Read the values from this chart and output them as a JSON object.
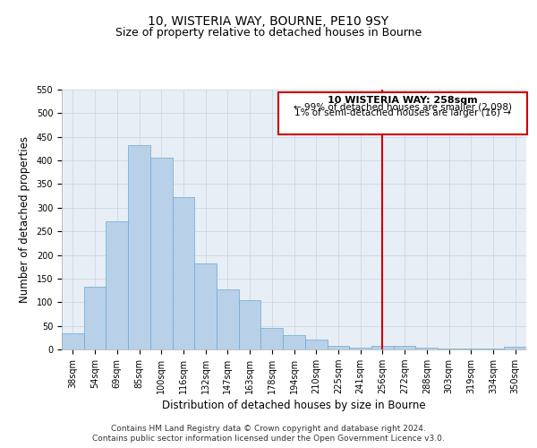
{
  "title": "10, WISTERIA WAY, BOURNE, PE10 9SY",
  "subtitle": "Size of property relative to detached houses in Bourne",
  "xlabel": "Distribution of detached houses by size in Bourne",
  "ylabel": "Number of detached properties",
  "bar_labels": [
    "38sqm",
    "54sqm",
    "69sqm",
    "85sqm",
    "100sqm",
    "116sqm",
    "132sqm",
    "147sqm",
    "163sqm",
    "178sqm",
    "194sqm",
    "210sqm",
    "225sqm",
    "241sqm",
    "256sqm",
    "272sqm",
    "288sqm",
    "303sqm",
    "319sqm",
    "334sqm",
    "350sqm"
  ],
  "bar_heights": [
    35,
    133,
    272,
    433,
    405,
    323,
    183,
    127,
    104,
    46,
    30,
    21,
    8,
    4,
    8,
    7,
    3,
    2,
    1,
    1,
    5
  ],
  "bar_color": "#b8d0e8",
  "bar_edge_color": "#6aaad4",
  "vline_x": 14,
  "vline_color": "#cc0000",
  "ylim": [
    0,
    550
  ],
  "yticks": [
    0,
    50,
    100,
    150,
    200,
    250,
    300,
    350,
    400,
    450,
    500,
    550
  ],
  "annotation_title": "10 WISTERIA WAY: 258sqm",
  "annotation_line1": "← 99% of detached houses are smaller (2,098)",
  "annotation_line2": "1% of semi-detached houses are larger (16) →",
  "annotation_box_color": "#ffffff",
  "annotation_box_edge": "#cc0000",
  "footer_line1": "Contains HM Land Registry data © Crown copyright and database right 2024.",
  "footer_line2": "Contains public sector information licensed under the Open Government Licence v3.0.",
  "plot_background": "#e8eef5",
  "title_fontsize": 10,
  "subtitle_fontsize": 9,
  "axis_label_fontsize": 8.5,
  "tick_fontsize": 7,
  "footer_fontsize": 6.5,
  "ann_fontsize_title": 8,
  "ann_fontsize_body": 7.5
}
